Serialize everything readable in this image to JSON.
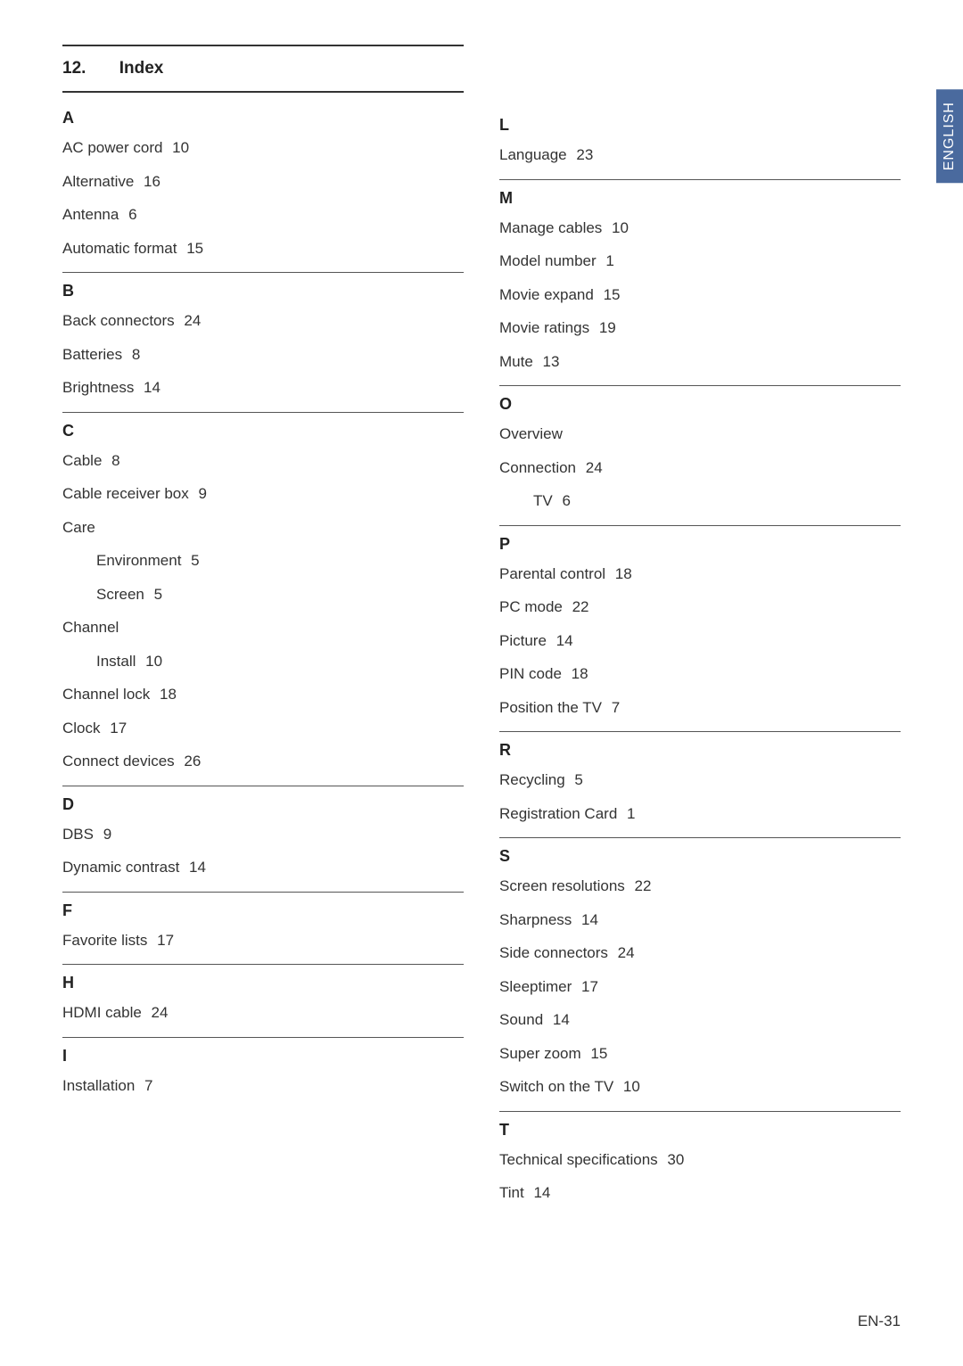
{
  "chapter_number": "12.",
  "chapter_title": "Index",
  "side_tab": "ENGLISH",
  "footer": "EN-31",
  "colors": {
    "tab_bg": "#4a6a9e",
    "tab_text": "#ffffff",
    "text": "#333333",
    "rule": "#555555",
    "bg": "#ffffff"
  },
  "left_column": [
    {
      "letter": "A",
      "no_border": true,
      "entries": [
        {
          "term": "AC power cord",
          "page": "10"
        },
        {
          "term": "Alternative",
          "page": "16"
        },
        {
          "term": "Antenna",
          "page": "6"
        },
        {
          "term": "Automatic format",
          "page": "15"
        }
      ]
    },
    {
      "letter": "B",
      "entries": [
        {
          "term": "Back connectors",
          "page": "24"
        },
        {
          "term": "Batteries",
          "page": "8"
        },
        {
          "term": "Brightness",
          "page": "14"
        }
      ]
    },
    {
      "letter": "C",
      "entries": [
        {
          "term": "Cable",
          "page": "8"
        },
        {
          "term": "Cable receiver box",
          "page": "9"
        },
        {
          "term": "Care",
          "page": ""
        },
        {
          "term": "Environment",
          "page": "5",
          "indent": true
        },
        {
          "term": "Screen",
          "page": "5",
          "indent": true
        },
        {
          "term": "Channel",
          "page": ""
        },
        {
          "term": "Install",
          "page": "10",
          "indent": true
        },
        {
          "term": "Channel lock",
          "page": "18"
        },
        {
          "term": "Clock",
          "page": "17"
        },
        {
          "term": "Connect devices",
          "page": "26"
        }
      ]
    },
    {
      "letter": "D",
      "entries": [
        {
          "term": "DBS",
          "page": "9"
        },
        {
          "term": "Dynamic contrast",
          "page": "14"
        }
      ]
    },
    {
      "letter": "F",
      "entries": [
        {
          "term": "Favorite lists",
          "page": "17"
        }
      ]
    },
    {
      "letter": "H",
      "entries": [
        {
          "term": "HDMI cable",
          "page": "24"
        }
      ]
    },
    {
      "letter": "I",
      "entries": [
        {
          "term": "Installation",
          "page": "7"
        }
      ]
    }
  ],
  "right_column": [
    {
      "letter": "L",
      "no_border": true,
      "entries": [
        {
          "term": "Language",
          "page": "23"
        }
      ]
    },
    {
      "letter": "M",
      "entries": [
        {
          "term": "Manage cables",
          "page": "10"
        },
        {
          "term": "Model number",
          "page": "1"
        },
        {
          "term": "Movie expand",
          "page": "15"
        },
        {
          "term": "Movie ratings",
          "page": "19"
        },
        {
          "term": "Mute",
          "page": "13"
        }
      ]
    },
    {
      "letter": "O",
      "entries": [
        {
          "term": "Overview",
          "page": ""
        },
        {
          "term": "Connection",
          "page": "24"
        },
        {
          "term": "TV",
          "page": "6",
          "indent": true
        }
      ]
    },
    {
      "letter": "P",
      "entries": [
        {
          "term": "Parental control",
          "page": "18"
        },
        {
          "term": "PC mode",
          "page": "22"
        },
        {
          "term": "Picture",
          "page": "14"
        },
        {
          "term": "PIN code",
          "page": "18"
        },
        {
          "term": "Position the TV",
          "page": "7"
        }
      ]
    },
    {
      "letter": "R",
      "entries": [
        {
          "term": "Recycling",
          "page": "5"
        },
        {
          "term": "Registration Card",
          "page": "1"
        }
      ]
    },
    {
      "letter": "S",
      "entries": [
        {
          "term": "Screen resolutions",
          "page": "22"
        },
        {
          "term": "Sharpness",
          "page": "14"
        },
        {
          "term": "Side connectors",
          "page": "24"
        },
        {
          "term": "Sleeptimer",
          "page": "17"
        },
        {
          "term": "Sound",
          "page": "14"
        },
        {
          "term": "Super zoom",
          "page": "15"
        },
        {
          "term": "Switch on the TV",
          "page": "10"
        }
      ]
    },
    {
      "letter": "T",
      "entries": [
        {
          "term": "Technical specifications",
          "page": "30"
        },
        {
          "term": "Tint",
          "page": "14"
        }
      ]
    }
  ]
}
